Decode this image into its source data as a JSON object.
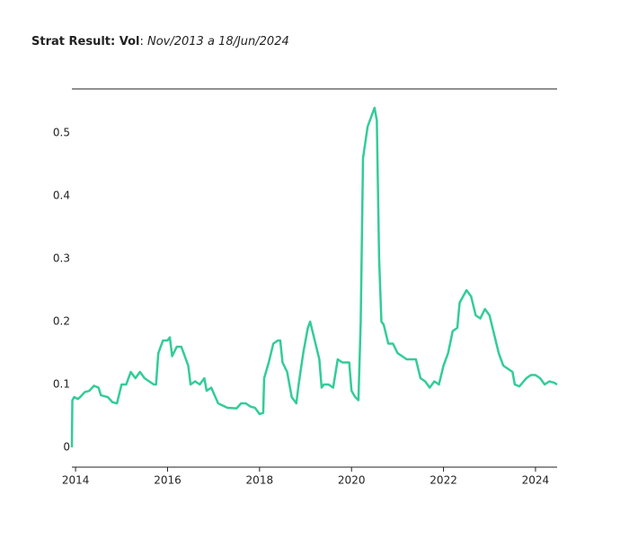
{
  "chart_data": {
    "type": "line",
    "title": "Strat Result: Vol",
    "title_separator": ":",
    "subtitle": "Nov/2013 a 18/Jun/2024",
    "x": [
      2013.92,
      2013.93,
      2013.97,
      2014.05,
      2014.1,
      2014.2,
      2014.3,
      2014.4,
      2014.5,
      2014.55,
      2014.7,
      2014.8,
      2014.9,
      2015.0,
      2015.1,
      2015.2,
      2015.3,
      2015.4,
      2015.5,
      2015.6,
      2015.7,
      2015.75,
      2015.8,
      2015.9,
      2016.0,
      2016.05,
      2016.1,
      2016.2,
      2016.3,
      2016.35,
      2016.45,
      2016.5,
      2016.6,
      2016.7,
      2016.8,
      2016.85,
      2016.95,
      2017.1,
      2017.3,
      2017.5,
      2017.6,
      2017.7,
      2017.8,
      2017.9,
      2018.0,
      2018.08,
      2018.1,
      2018.2,
      2018.3,
      2018.4,
      2018.45,
      2018.5,
      2018.6,
      2018.7,
      2018.8,
      2018.85,
      2018.95,
      2019.05,
      2019.1,
      2019.2,
      2019.3,
      2019.35,
      2019.4,
      2019.5,
      2019.6,
      2019.7,
      2019.8,
      2019.95,
      2020.0,
      2020.08,
      2020.15,
      2020.2,
      2020.25,
      2020.35,
      2020.45,
      2020.5,
      2020.55,
      2020.6,
      2020.65,
      2020.7,
      2020.8,
      2020.9,
      2021.0,
      2021.2,
      2021.4,
      2021.5,
      2021.6,
      2021.7,
      2021.8,
      2021.9,
      2022.0,
      2022.1,
      2022.2,
      2022.3,
      2022.35,
      2022.5,
      2022.6,
      2022.7,
      2022.8,
      2022.9,
      2023.0,
      2023.1,
      2023.2,
      2023.3,
      2023.4,
      2023.5,
      2023.55,
      2023.65,
      2023.8,
      2023.9,
      2024.0,
      2024.1,
      2024.2,
      2024.3,
      2024.4,
      2024.47
    ],
    "series": [
      {
        "name": "Vol",
        "color": "#33cc99",
        "values": [
          0.0,
          0.075,
          0.08,
          0.077,
          0.08,
          0.088,
          0.09,
          0.098,
          0.095,
          0.083,
          0.08,
          0.072,
          0.07,
          0.1,
          0.1,
          0.12,
          0.11,
          0.12,
          0.11,
          0.105,
          0.1,
          0.1,
          0.15,
          0.17,
          0.17,
          0.175,
          0.145,
          0.16,
          0.16,
          0.15,
          0.13,
          0.1,
          0.105,
          0.1,
          0.11,
          0.09,
          0.095,
          0.07,
          0.063,
          0.062,
          0.07,
          0.07,
          0.065,
          0.063,
          0.053,
          0.055,
          0.11,
          0.135,
          0.165,
          0.17,
          0.17,
          0.135,
          0.12,
          0.08,
          0.07,
          0.1,
          0.15,
          0.19,
          0.2,
          0.17,
          0.14,
          0.095,
          0.1,
          0.1,
          0.095,
          0.14,
          0.135,
          0.135,
          0.09,
          0.08,
          0.075,
          0.2,
          0.46,
          0.51,
          0.53,
          0.54,
          0.52,
          0.3,
          0.2,
          0.195,
          0.165,
          0.165,
          0.15,
          0.14,
          0.14,
          0.11,
          0.105,
          0.095,
          0.105,
          0.1,
          0.13,
          0.15,
          0.185,
          0.19,
          0.23,
          0.25,
          0.24,
          0.21,
          0.205,
          0.22,
          0.21,
          0.18,
          0.15,
          0.13,
          0.125,
          0.12,
          0.1,
          0.097,
          0.11,
          0.115,
          0.115,
          0.11,
          0.1,
          0.105,
          0.103,
          0.1
        ]
      }
    ],
    "xlim": [
      2013.92,
      2024.47
    ],
    "xticks": [
      2014,
      2016,
      2018,
      2020,
      2022,
      2024
    ],
    "ylim": [
      -0.0314,
      0.57
    ],
    "yticks": [
      0,
      0.1,
      0.2,
      0.3,
      0.4,
      0.5
    ],
    "grid": false
  }
}
